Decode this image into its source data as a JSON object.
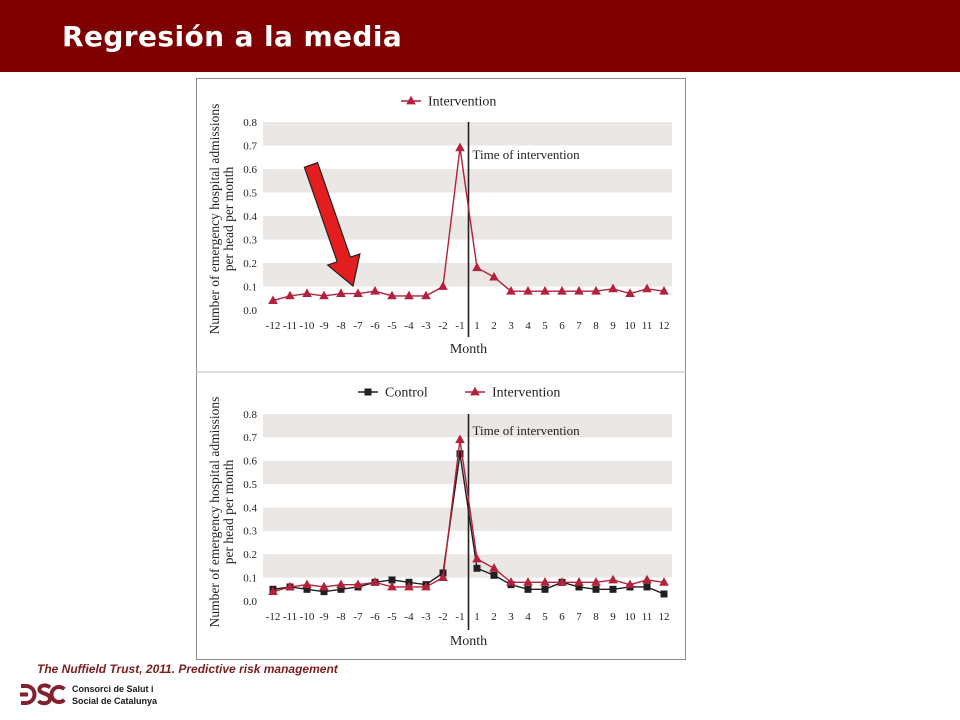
{
  "header": {
    "title": "Regresión a la media"
  },
  "footer": {
    "caption": "The Nuffield Trust, 2011. Predictive risk management",
    "logo_line1": "Consorci de Salut i",
    "logo_line2": "Social de Catalunya"
  },
  "colors": {
    "header_bg": "#7f0000",
    "title_text": "#ffffff",
    "caption_text": "#7a1e1e",
    "logo_mark": "#82202f",
    "band": "#eae7e5",
    "annotation_arrow": "#e41e1e"
  },
  "chart_data": [
    {
      "type": "line",
      "legend": "top-center",
      "grid": true,
      "x": [
        -12,
        -11,
        -10,
        -9,
        -8,
        -7,
        -6,
        -5,
        -4,
        -3,
        -2,
        -1,
        1,
        2,
        3,
        4,
        5,
        6,
        7,
        8,
        9,
        10,
        11,
        12
      ],
      "xlabel": "Month",
      "ylabel": [
        "Number of emergency hospital admissions",
        "per head per month"
      ],
      "ylim": [
        0,
        0.8
      ],
      "yticks": [
        "0.0",
        "0.1",
        "0.2",
        "0.3",
        "0.4",
        "0.5",
        "0.6",
        "0.7",
        "0.8"
      ],
      "annotation": {
        "text": "Time of intervention",
        "between_x": [
          -1,
          1
        ]
      },
      "series": [
        {
          "name": "Intervention",
          "marker": "triangle",
          "color": "#b3213a",
          "values": [
            0.04,
            0.06,
            0.07,
            0.06,
            0.07,
            0.07,
            0.08,
            0.06,
            0.06,
            0.06,
            0.1,
            0.69,
            0.18,
            0.14,
            0.08,
            0.08,
            0.08,
            0.08,
            0.08,
            0.08,
            0.09,
            0.07,
            0.09,
            0.08
          ]
        }
      ]
    },
    {
      "type": "line",
      "legend": "top-center",
      "grid": true,
      "x": [
        -12,
        -11,
        -10,
        -9,
        -8,
        -7,
        -6,
        -5,
        -4,
        -3,
        -2,
        -1,
        1,
        2,
        3,
        4,
        5,
        6,
        7,
        8,
        9,
        10,
        11,
        12
      ],
      "xlabel": "Month",
      "ylabel": [
        "Number of emergency hospital admissions",
        "per head per month"
      ],
      "ylim": [
        0,
        0.8
      ],
      "yticks": [
        "0.0",
        "0.1",
        "0.2",
        "0.3",
        "0.4",
        "0.5",
        "0.6",
        "0.7",
        "0.8"
      ],
      "annotation": {
        "text": "Time of intervention",
        "between_x": [
          -1,
          1
        ]
      },
      "series": [
        {
          "name": "Control",
          "marker": "square",
          "color": "#231f20",
          "values": [
            0.05,
            0.06,
            0.05,
            0.04,
            0.05,
            0.06,
            0.08,
            0.09,
            0.08,
            0.07,
            0.12,
            0.63,
            0.14,
            0.11,
            0.07,
            0.05,
            0.05,
            0.08,
            0.06,
            0.05,
            0.05,
            0.06,
            0.06,
            0.03
          ]
        },
        {
          "name": "Intervention",
          "marker": "triangle",
          "color": "#b3213a",
          "values": [
            0.04,
            0.06,
            0.07,
            0.06,
            0.07,
            0.07,
            0.08,
            0.06,
            0.06,
            0.06,
            0.1,
            0.69,
            0.18,
            0.14,
            0.08,
            0.08,
            0.08,
            0.08,
            0.08,
            0.08,
            0.09,
            0.07,
            0.09,
            0.08
          ]
        }
      ]
    }
  ]
}
